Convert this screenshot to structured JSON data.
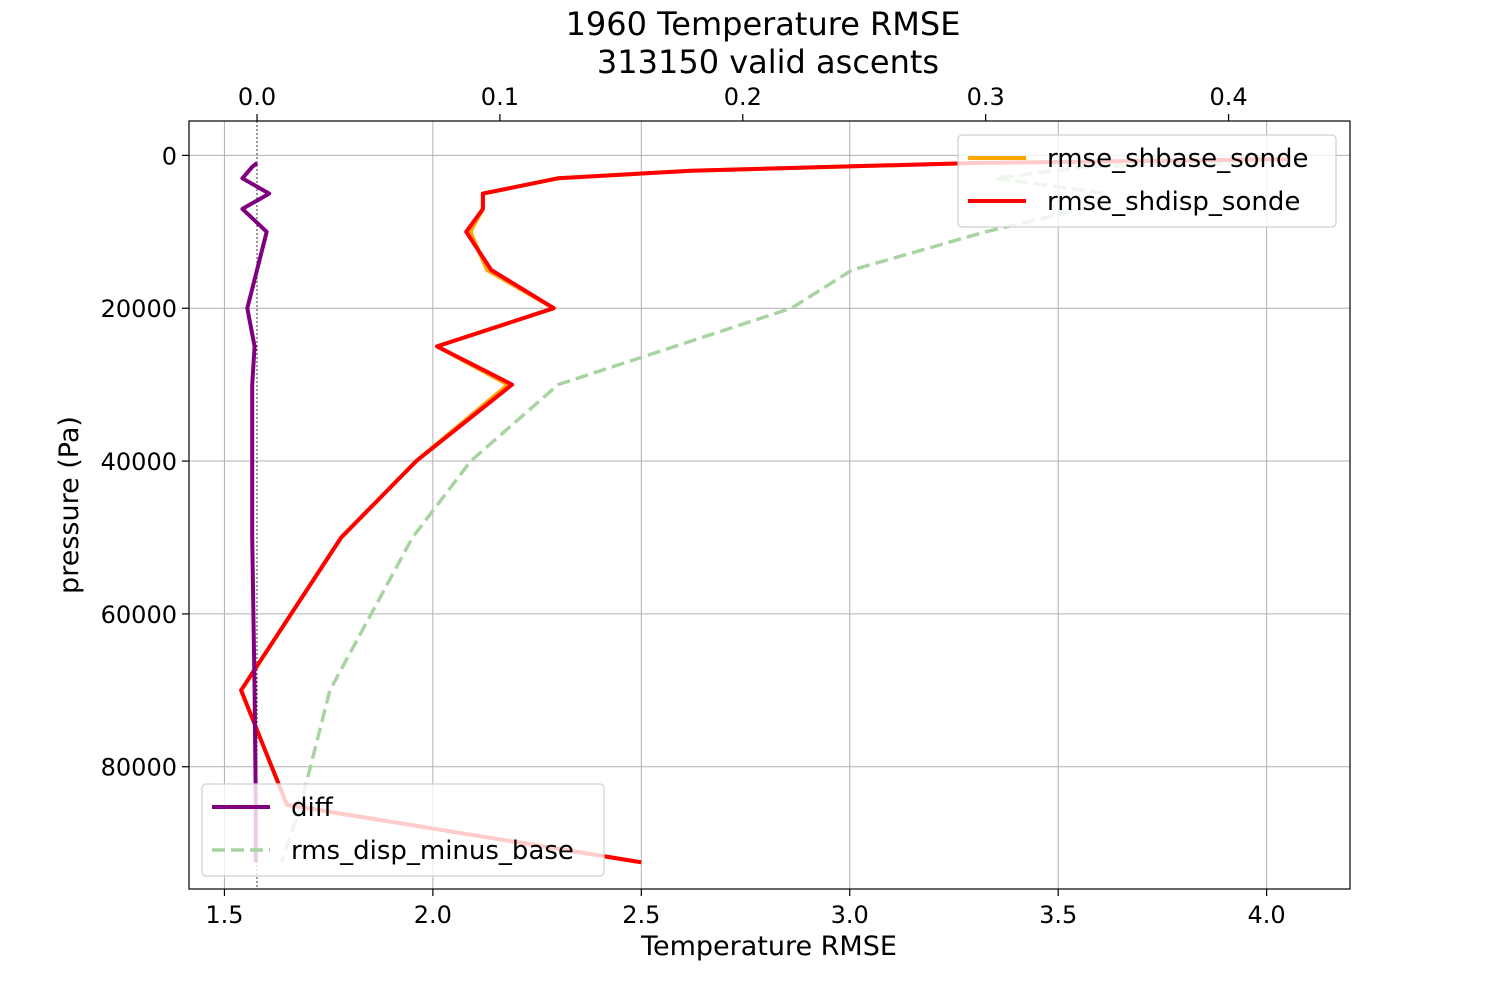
{
  "chart_data": {
    "type": "line",
    "title": "1960 Temperature RMSE",
    "subtitle": "313150 valid ascents",
    "xlabel": "Temperature RMSE",
    "ylabel": "pressure (Pa)",
    "bottom_axis": {
      "range": [
        1.415,
        4.2
      ],
      "ticks": [
        1.5,
        2.0,
        2.5,
        3.0,
        3.5,
        4.0
      ],
      "tick_labels": [
        "1.5",
        "2.0",
        "2.5",
        "3.0",
        "3.5",
        "4.0"
      ]
    },
    "top_axis": {
      "range": [
        -0.028,
        0.45
      ],
      "ticks": [
        0.0,
        0.1,
        0.2,
        0.3,
        0.4
      ],
      "tick_labels": [
        "0.0",
        "0.1",
        "0.2",
        "0.3",
        "0.4"
      ]
    },
    "y_axis": {
      "range": [
        -4500,
        96000
      ],
      "inverted": true,
      "ticks": [
        0,
        20000,
        40000,
        60000,
        80000
      ],
      "tick_labels": [
        "0",
        "20000",
        "40000",
        "60000",
        "80000"
      ]
    },
    "grid": true,
    "reference_line_top_x": 0.0,
    "legends": [
      {
        "placement": "upper-right",
        "entries": [
          "rmse_shbase_sonde",
          "rmse_shdisp_sonde"
        ]
      },
      {
        "placement": "lower-left",
        "entries": [
          "diff",
          "rms_disp_minus_base"
        ]
      }
    ],
    "series": [
      {
        "name": "rmse_shbase_sonde",
        "axis": "bottom",
        "color": "#ffa500",
        "style": "solid",
        "points": [
          [
            4.0,
            500
          ],
          [
            3.3,
            1000
          ],
          [
            2.62,
            2000
          ],
          [
            2.3,
            3000
          ],
          [
            2.12,
            5000
          ],
          [
            2.12,
            7000
          ],
          [
            2.09,
            10000
          ],
          [
            2.13,
            15000
          ],
          [
            2.29,
            20000
          ],
          [
            2.01,
            25000
          ],
          [
            2.18,
            30000
          ],
          [
            1.96,
            40000
          ],
          [
            1.78,
            50000
          ],
          [
            1.54,
            70000
          ],
          [
            1.65,
            85000
          ],
          [
            2.5,
            92500
          ]
        ]
      },
      {
        "name": "rmse_shdisp_sonde",
        "axis": "bottom",
        "color": "#ff0000",
        "style": "solid",
        "points": [
          [
            4.05,
            500
          ],
          [
            3.3,
            1000
          ],
          [
            2.62,
            2000
          ],
          [
            2.3,
            3000
          ],
          [
            2.12,
            5000
          ],
          [
            2.12,
            7000
          ],
          [
            2.08,
            10000
          ],
          [
            2.14,
            15000
          ],
          [
            2.29,
            20000
          ],
          [
            2.01,
            25000
          ],
          [
            2.19,
            30000
          ],
          [
            1.96,
            40000
          ],
          [
            1.78,
            50000
          ],
          [
            1.54,
            70000
          ],
          [
            1.65,
            85000
          ],
          [
            2.5,
            92500
          ]
        ]
      },
      {
        "name": "diff",
        "axis": "top",
        "color": "#800080",
        "style": "solid",
        "points": [
          [
            0.0,
            1000
          ],
          [
            -0.002,
            1500
          ],
          [
            -0.006,
            3000
          ],
          [
            0.005,
            5000
          ],
          [
            -0.006,
            7000
          ],
          [
            0.004,
            10000
          ],
          [
            -0.004,
            20000
          ],
          [
            -0.001,
            25000
          ],
          [
            -0.002,
            30000
          ],
          [
            -0.002,
            40000
          ],
          [
            -0.002,
            50000
          ],
          [
            -0.001,
            70000
          ],
          [
            -0.0005,
            85000
          ],
          [
            -0.0005,
            92500
          ]
        ]
      },
      {
        "name": "rms_disp_minus_base",
        "axis": "top",
        "color": "#a9d3a3",
        "style": "dashed",
        "points": [
          [
            0.405,
            1000
          ],
          [
            0.34,
            1500
          ],
          [
            0.304,
            3000
          ],
          [
            0.35,
            5000
          ],
          [
            0.34,
            7000
          ],
          [
            0.3,
            10000
          ],
          [
            0.245,
            15000
          ],
          [
            0.22,
            20000
          ],
          [
            0.124,
            30000
          ],
          [
            0.088,
            40000
          ],
          [
            0.064,
            50000
          ],
          [
            0.03,
            70000
          ],
          [
            0.018,
            85000
          ],
          [
            0.01,
            92500
          ]
        ]
      }
    ]
  }
}
